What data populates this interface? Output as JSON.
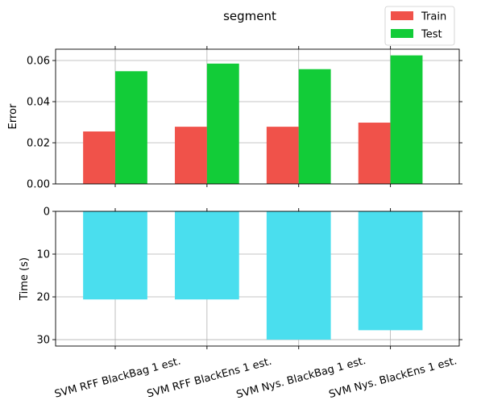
{
  "chart_data": [
    {
      "type": "bar",
      "title": "segment",
      "ylabel": "Error",
      "xlabel": "",
      "categories": [
        "SVM RFF BlackBag 1 est.",
        "SVM RFF BlackEns 1 est.",
        "SVM Nys. BlackBag 1 est.",
        "SVM Nys. BlackEns 1 est."
      ],
      "series": [
        {
          "name": "Train",
          "color": "#f0524a",
          "values": [
            0.0255,
            0.0278,
            0.0278,
            0.0298
          ]
        },
        {
          "name": "Test",
          "color": "#12cc38",
          "values": [
            0.0548,
            0.0585,
            0.0558,
            0.0625
          ]
        }
      ],
      "ylim": [
        0,
        0.0655
      ],
      "yticks": [
        "0.00",
        "0.02",
        "0.04",
        "0.06"
      ],
      "ytick_values": [
        0,
        0.02,
        0.04,
        0.06
      ],
      "grid": true,
      "legend": "top-right"
    },
    {
      "type": "bar",
      "ylabel": "Time (s)",
      "xlabel": "",
      "categories": [
        "SVM RFF BlackBag 1 est.",
        "SVM RFF BlackEns 1 est.",
        "SVM Nys. BlackBag 1 est.",
        "SVM Nys. BlackEns 1 est."
      ],
      "series": [
        {
          "color": "#4adeee",
          "values": [
            20.6,
            20.6,
            30.0,
            27.8
          ]
        }
      ],
      "ylim": [
        31.5,
        0
      ],
      "y_inverted": true,
      "yticks": [
        "0",
        "10",
        "20",
        "30"
      ],
      "ytick_values": [
        0,
        10,
        20,
        30
      ],
      "grid": true
    }
  ]
}
